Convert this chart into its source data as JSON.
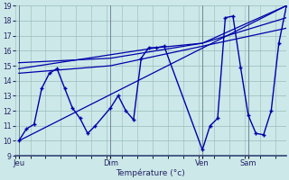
{
  "bg_color": "#cce8e8",
  "grid_color": "#99bbbb",
  "line_color": "#0000aa",
  "ylim": [
    9,
    19
  ],
  "yticks": [
    9,
    10,
    11,
    12,
    13,
    14,
    15,
    16,
    17,
    18,
    19
  ],
  "xlabel": "Température (°c)",
  "xtick_labels": [
    "Jeu",
    "Dim",
    "Ven",
    "Sam"
  ],
  "xtick_positions": [
    0,
    48,
    96,
    120
  ],
  "xlim": [
    -2,
    140
  ],
  "wavy_x": [
    0,
    4,
    8,
    12,
    16,
    20,
    24,
    28,
    32,
    36,
    40,
    48,
    52,
    56,
    60,
    64,
    68,
    72,
    76,
    96,
    100,
    104,
    108,
    112,
    116,
    120,
    124,
    128,
    132,
    136,
    140
  ],
  "wavy_y": [
    10.0,
    10.8,
    11.1,
    13.5,
    14.5,
    14.8,
    13.5,
    12.2,
    11.5,
    10.5,
    11.0,
    12.2,
    13.0,
    12.0,
    11.4,
    15.5,
    16.2,
    16.2,
    16.3,
    9.4,
    11.0,
    11.5,
    18.2,
    18.3,
    14.9,
    11.7,
    10.5,
    10.4,
    12.0,
    16.5,
    19.0
  ],
  "trend1_x": [
    0,
    140
  ],
  "trend1_y": [
    10.0,
    19.0
  ],
  "trend2_x": [
    0,
    72,
    96,
    140
  ],
  "trend2_y": [
    14.8,
    16.2,
    16.5,
    19.0
  ],
  "trend3_x": [
    0,
    48,
    96,
    140
  ],
  "trend3_y": [
    15.2,
    15.5,
    16.5,
    18.2
  ],
  "trend4_x": [
    0,
    48,
    96,
    140
  ],
  "trend4_y": [
    14.5,
    15.0,
    16.3,
    17.5
  ]
}
